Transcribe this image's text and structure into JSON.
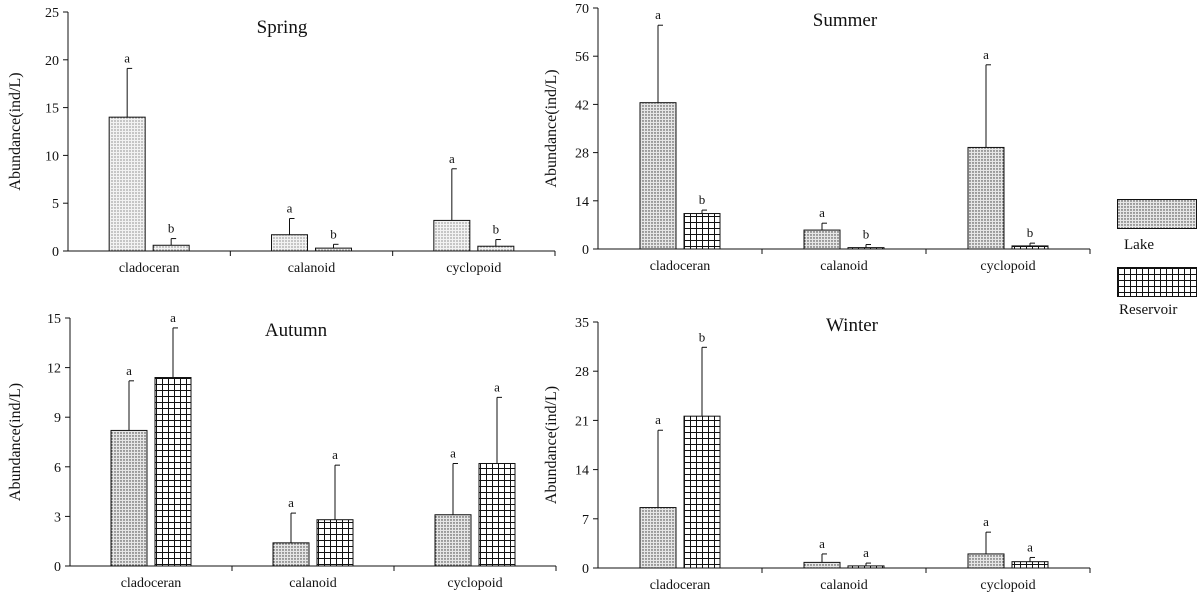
{
  "legend": {
    "lake_label": "Lake",
    "reservoir_label": "Reservoir"
  },
  "chart_data": [
    {
      "type": "bar",
      "title": "Spring",
      "ylabel": "Abundance(ind/L)",
      "xlabel": "",
      "categories": [
        "cladoceran",
        "calanoid",
        "cyclopoid"
      ],
      "ylim": [
        0,
        25
      ],
      "yticks": [
        0,
        5,
        10,
        15,
        20,
        25
      ],
      "series": [
        {
          "name": "Lake",
          "values": [
            14.0,
            1.7,
            3.2
          ],
          "errors": [
            5.1,
            1.7,
            5.4
          ],
          "letters": [
            "a",
            "a",
            "a"
          ]
        },
        {
          "name": "Reservoir",
          "values": [
            0.6,
            0.3,
            0.5
          ],
          "errors": [
            0.7,
            0.4,
            0.7
          ],
          "letters": [
            "b",
            "b",
            "b"
          ]
        }
      ]
    },
    {
      "type": "bar",
      "title": "Summer",
      "ylabel": "Abundance(ind/L)",
      "xlabel": "",
      "categories": [
        "cladoceran",
        "calanoid",
        "cyclopoid"
      ],
      "ylim": [
        0,
        70
      ],
      "yticks": [
        0,
        14,
        28,
        42,
        56,
        70
      ],
      "series": [
        {
          "name": "Lake",
          "values": [
            42.5,
            5.5,
            29.5
          ],
          "errors": [
            22.5,
            2.0,
            24.0
          ],
          "letters": [
            "a",
            "a",
            "a"
          ]
        },
        {
          "name": "Reservoir",
          "values": [
            10.3,
            0.4,
            0.9
          ],
          "errors": [
            1.0,
            0.9,
            0.8
          ],
          "letters": [
            "b",
            "b",
            "b"
          ]
        }
      ]
    },
    {
      "type": "bar",
      "title": "Autumn",
      "ylabel": "Abundance(ind/L)",
      "xlabel": "",
      "categories": [
        "cladoceran",
        "calanoid",
        "cyclopoid"
      ],
      "ylim": [
        0,
        15
      ],
      "yticks": [
        0,
        3,
        6,
        9,
        12,
        15
      ],
      "series": [
        {
          "name": "Lake",
          "values": [
            8.2,
            1.4,
            3.1
          ],
          "errors": [
            3.0,
            1.8,
            3.1
          ],
          "letters": [
            "a",
            "a",
            "a"
          ]
        },
        {
          "name": "Reservoir",
          "values": [
            11.4,
            2.8,
            6.2
          ],
          "errors": [
            3.0,
            3.3,
            4.0
          ],
          "letters": [
            "a",
            "a",
            "a"
          ]
        }
      ]
    },
    {
      "type": "bar",
      "title": "Winter",
      "ylabel": "Abundance(ind/L)",
      "xlabel": "",
      "categories": [
        "cladoceran",
        "calanoid",
        "cyclopoid"
      ],
      "ylim": [
        0,
        35
      ],
      "yticks": [
        0,
        7,
        14,
        21,
        28,
        35
      ],
      "series": [
        {
          "name": "Lake",
          "values": [
            8.6,
            0.8,
            2.0
          ],
          "errors": [
            11.0,
            1.2,
            3.1
          ],
          "letters": [
            "a",
            "a",
            "a"
          ]
        },
        {
          "name": "Reservoir",
          "values": [
            21.6,
            0.3,
            0.9
          ],
          "errors": [
            9.8,
            0.4,
            0.6
          ],
          "letters": [
            "b",
            "a",
            "a"
          ]
        }
      ]
    }
  ]
}
